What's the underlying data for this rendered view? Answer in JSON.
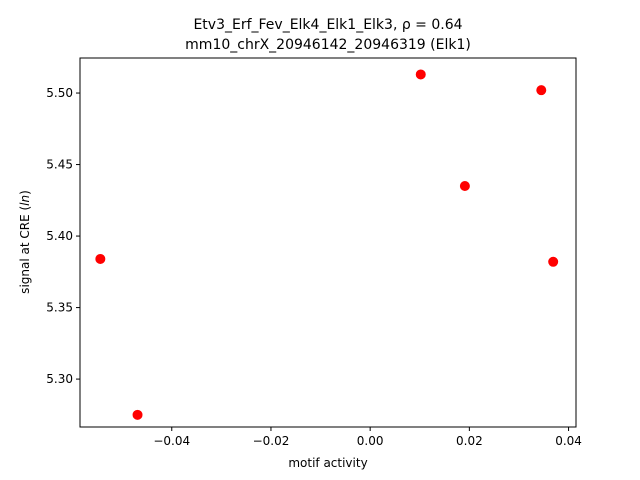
{
  "chart_data": {
    "type": "scatter",
    "title_line1": "Etv3_Erf_Fev_Elk4_Elk1_Elk3, ρ = 0.64",
    "title_line2": "mm10_chrX_20946142_20946319 (Elk1)",
    "xlabel": "motif activity",
    "ylabel": "signal at CRE (ln)",
    "xlim": [
      -0.0585,
      0.0415
    ],
    "ylim": [
      5.2665,
      5.5245
    ],
    "xticks": [
      {
        "value": -0.04,
        "label": "−0.04"
      },
      {
        "value": -0.02,
        "label": "−0.02"
      },
      {
        "value": 0.0,
        "label": "0.00"
      },
      {
        "value": 0.02,
        "label": "0.02"
      },
      {
        "value": 0.04,
        "label": "0.04"
      }
    ],
    "yticks": [
      {
        "value": 5.3,
        "label": "5.30"
      },
      {
        "value": 5.35,
        "label": "5.35"
      },
      {
        "value": 5.4,
        "label": "5.40"
      },
      {
        "value": 5.45,
        "label": "5.45"
      },
      {
        "value": 5.5,
        "label": "5.50"
      }
    ],
    "points": [
      {
        "x": -0.0544,
        "y": 5.384
      },
      {
        "x": -0.0469,
        "y": 5.275
      },
      {
        "x": 0.0102,
        "y": 5.513
      },
      {
        "x": 0.0191,
        "y": 5.435
      },
      {
        "x": 0.0345,
        "y": 5.502
      },
      {
        "x": 0.0369,
        "y": 5.382
      }
    ],
    "marker_color": "#ff0000",
    "grid": false,
    "legend": "none"
  }
}
